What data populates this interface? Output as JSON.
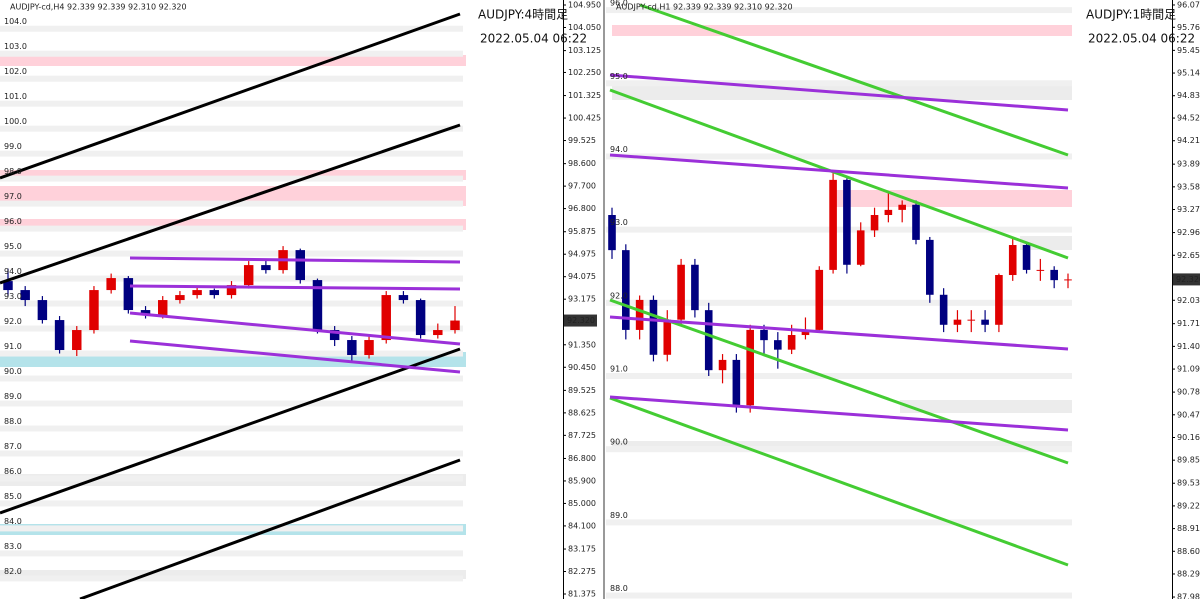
{
  "chart_data": [
    {
      "type": "candlestick",
      "header": "AUDJPY-cd,H4  92.339 92.339 92.310 92.320",
      "title": "AUDJPY:4時間足",
      "timestamp": "2022.05.04 06:22",
      "up_color": "#e00000",
      "down_color": "#000080",
      "open": [
        93.9,
        93.54,
        93.14,
        92.34,
        91.14,
        91.94,
        93.54,
        94.02,
        92.74,
        92.54,
        93.14,
        93.34,
        93.54,
        93.34,
        93.74,
        94.54,
        94.34,
        95.14,
        93.94,
        91.94,
        91.54,
        90.94,
        91.54,
        93.34,
        93.14,
        91.74,
        91.94
      ],
      "high": [
        94.4,
        93.7,
        93.3,
        92.5,
        92.1,
        93.7,
        94.2,
        94.1,
        92.9,
        93.3,
        93.5,
        93.7,
        93.6,
        93.9,
        94.7,
        94.8,
        95.3,
        95.2,
        94.0,
        92.1,
        91.7,
        91.7,
        93.5,
        93.5,
        93.2,
        92.2,
        92.9
      ],
      "low": [
        93.3,
        92.9,
        92.2,
        91.0,
        90.9,
        91.8,
        93.4,
        92.6,
        92.4,
        92.4,
        93.0,
        93.2,
        93.2,
        93.2,
        93.6,
        94.2,
        94.2,
        93.8,
        91.8,
        91.3,
        90.7,
        90.8,
        91.4,
        93.0,
        91.6,
        91.6,
        91.8
      ],
      "close": [
        93.54,
        93.14,
        92.34,
        91.14,
        91.94,
        93.54,
        94.02,
        92.74,
        92.54,
        93.14,
        93.34,
        93.54,
        93.34,
        93.74,
        94.54,
        94.34,
        95.14,
        93.94,
        91.94,
        91.54,
        90.94,
        91.54,
        93.34,
        93.14,
        91.74,
        91.94,
        92.32
      ],
      "ylim": [
        81.175,
        105.15
      ],
      "yticks": [
        {
          "value": 104.95,
          "label": "104.950"
        },
        {
          "value": 104.05,
          "label": "104.050"
        },
        103.125,
        {
          "value": 102.25,
          "label": "102.250"
        },
        101.325,
        100.425,
        99.525,
        {
          "value": 98.6,
          "label": "98.600"
        },
        {
          "value": 97.7,
          "label": "97.700"
        },
        {
          "value": 96.8,
          "label": "96.800"
        },
        95.875,
        94.975,
        94.075,
        93.175,
        {
          "value": 91.35,
          "label": "91.350"
        },
        {
          "value": 90.45,
          "label": "90.450"
        },
        89.525,
        88.625,
        87.725,
        {
          "value": 86.8,
          "label": "86.800"
        },
        {
          "value": 85.9,
          "label": "85.900"
        },
        {
          "value": 85,
          "label": "85.000"
        },
        {
          "value": 84.1,
          "label": "84.100"
        },
        83.175,
        82.275,
        81.375
      ],
      "last_price": {
        "value": 92.32,
        "label": "92.320"
      },
      "level_labels": [
        {
          "value": 104,
          "label": "104.0"
        },
        {
          "value": 103,
          "label": "103.0"
        },
        {
          "value": 102,
          "label": "102.0"
        },
        {
          "value": 101,
          "label": "101.0"
        },
        {
          "value": 100,
          "label": "100.0"
        },
        {
          "value": 99,
          "label": "99.0"
        },
        {
          "value": 98,
          "label": "98.0"
        },
        {
          "value": 97,
          "label": "97.0"
        },
        {
          "value": 96,
          "label": "96.0"
        },
        {
          "value": 95,
          "label": "95.0"
        },
        {
          "value": 94,
          "label": "94.0"
        },
        {
          "value": 93,
          "label": "93.0"
        },
        {
          "value": 92,
          "label": "92.0"
        },
        {
          "value": 91,
          "label": "91.0"
        },
        {
          "value": 90,
          "label": "90.0"
        },
        {
          "value": 89,
          "label": "89.0"
        },
        {
          "value": 88,
          "label": "88.0"
        },
        {
          "value": 87,
          "label": "87.0"
        },
        {
          "value": 86,
          "label": "86.0"
        },
        {
          "value": 85,
          "label": "85.0"
        },
        {
          "value": 84,
          "label": "84.0"
        },
        {
          "value": 83,
          "label": "83.0"
        },
        {
          "value": 82,
          "label": "82.0"
        }
      ]
    },
    {
      "type": "candlestick",
      "header": "AUDJPY-cd,H1  92.339 92.339 92.310 92.320",
      "title": "AUDJPY:1時間足",
      "timestamp": "2022.05.04 06:22",
      "up_color": "#e00000",
      "down_color": "#000080",
      "open": [
        93.2,
        92.72,
        91.63,
        92.04,
        91.29,
        91.77,
        92.52,
        91.9,
        91.08,
        91.22,
        90.6,
        91.63,
        91.49,
        91.36,
        91.56,
        91.63,
        92.45,
        93.68,
        92.52,
        92.99,
        93.2,
        93.27,
        93.34,
        92.86,
        92.11,
        91.7,
        91.77,
        91.77,
        91.7,
        92.38,
        92.79,
        92.45,
        92.45,
        92.31
      ],
      "high": [
        93.3,
        92.8,
        92.1,
        92.1,
        91.9,
        92.6,
        92.6,
        92.0,
        91.3,
        91.3,
        91.7,
        91.7,
        91.6,
        91.7,
        91.8,
        92.5,
        93.8,
        93.7,
        93.1,
        93.3,
        93.5,
        93.4,
        93.4,
        92.9,
        92.2,
        91.9,
        91.9,
        91.9,
        92.4,
        92.9,
        92.8,
        92.6,
        92.5,
        92.4
      ],
      "low": [
        92.6,
        91.5,
        91.5,
        91.2,
        91.2,
        91.7,
        91.8,
        91.0,
        90.9,
        90.5,
        90.5,
        91.3,
        91.1,
        91.3,
        91.5,
        91.6,
        92.4,
        92.4,
        92.5,
        92.9,
        93.1,
        93.1,
        92.8,
        92.0,
        91.6,
        91.6,
        91.6,
        91.6,
        91.6,
        92.3,
        92.4,
        92.3,
        92.2,
        92.2
      ],
      "close": [
        92.72,
        91.63,
        92.04,
        91.29,
        91.77,
        92.52,
        91.9,
        91.08,
        91.22,
        90.6,
        91.63,
        91.49,
        91.36,
        91.56,
        91.63,
        92.45,
        93.68,
        92.52,
        92.99,
        93.2,
        93.27,
        93.34,
        92.86,
        92.11,
        91.7,
        91.77,
        91.77,
        91.7,
        92.38,
        92.79,
        92.45,
        92.45,
        92.31,
        92.32
      ],
      "ylim": [
        87.953,
        96.138
      ],
      "yticks": [
        {
          "value": 96.07,
          "label": "96.070"
        },
        95.765,
        {
          "value": 95.45,
          "label": "95.450"
        },
        {
          "value": 95.14,
          "label": "95.140"
        },
        {
          "value": 94.83,
          "label": "94.830"
        },
        94.525,
        94.215,
        93.895,
        93.585,
        93.275,
        {
          "value": 92.96,
          "label": "92.960"
        },
        {
          "value": 92.65,
          "label": "92.650"
        },
        92.035,
        91.715,
        91.405,
        91.095,
        {
          "value": 90.78,
          "label": "90.780"
        },
        {
          "value": 90.47,
          "label": "90.470"
        },
        {
          "value": 90.16,
          "label": "90.160"
        },
        {
          "value": 89.85,
          "label": "89.850"
        },
        89.535,
        89.225,
        88.915,
        88.605,
        88.295,
        {
          "value": 87.98,
          "label": "87.980"
        }
      ],
      "last_price": {
        "value": 92.32,
        "label": "92.320"
      },
      "level_labels": [
        {
          "value": 96,
          "label": "96.0"
        },
        {
          "value": 95,
          "label": "95.0"
        },
        {
          "value": 94,
          "label": "94.0"
        },
        {
          "value": 93,
          "label": "93.0"
        },
        {
          "value": 92,
          "label": "92.0"
        },
        {
          "value": 91,
          "label": "91.0"
        },
        {
          "value": 90,
          "label": "90.0"
        },
        {
          "value": 89,
          "label": "89.0"
        },
        {
          "value": 88,
          "label": "88.0"
        }
      ]
    }
  ]
}
